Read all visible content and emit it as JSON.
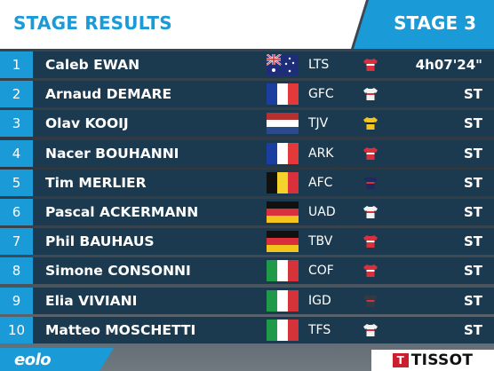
{
  "header": {
    "title": "STAGE RESULTS",
    "stage": "STAGE 3"
  },
  "colors": {
    "accent": "#1a9ad6",
    "row_bg": "#1c3a4f",
    "header_bg": "#ffffff"
  },
  "rows": [
    {
      "rank": "1",
      "rider": "Caleb EWAN",
      "flag": "australia",
      "team": "LTS",
      "jersey": "jersey-red-icon",
      "result": "4h07'24\""
    },
    {
      "rank": "2",
      "rider": "Arnaud DEMARE",
      "flag": "france",
      "team": "GFC",
      "jersey": "jersey-white-icon",
      "result": "ST"
    },
    {
      "rank": "3",
      "rider": "Olav KOOIJ",
      "flag": "netherlands",
      "team": "TJV",
      "jersey": "jersey-yellow-icon",
      "result": "ST"
    },
    {
      "rank": "4",
      "rider": "Nacer BOUHANNI",
      "flag": "france",
      "team": "ARK",
      "jersey": "jersey-red-icon",
      "result": "ST"
    },
    {
      "rank": "5",
      "rider": "Tim MERLIER",
      "flag": "belgium",
      "team": "AFC",
      "jersey": "jersey-navy-icon",
      "result": "ST"
    },
    {
      "rank": "6",
      "rider": "Pascal ACKERMANN",
      "flag": "germany",
      "team": "UAD",
      "jersey": "jersey-white-icon",
      "result": "ST"
    },
    {
      "rank": "7",
      "rider": "Phil BAUHAUS",
      "flag": "germany",
      "team": "TBV",
      "jersey": "jersey-red-icon",
      "result": "ST"
    },
    {
      "rank": "8",
      "rider": "Simone CONSONNI",
      "flag": "italy",
      "team": "COF",
      "jersey": "jersey-red-icon",
      "result": "ST"
    },
    {
      "rank": "9",
      "rider": "Elia VIVIANI",
      "flag": "italy",
      "team": "IGD",
      "jersey": "jersey-dark-icon",
      "result": "ST"
    },
    {
      "rank": "10",
      "rider": "Matteo MOSCHETTI",
      "flag": "italy",
      "team": "TFS",
      "jersey": "jersey-white-icon",
      "result": "ST"
    }
  ],
  "footer": {
    "sponsor_left": "eolo",
    "sponsor_right": "TISSOT",
    "sponsor_right_mark": "T"
  }
}
